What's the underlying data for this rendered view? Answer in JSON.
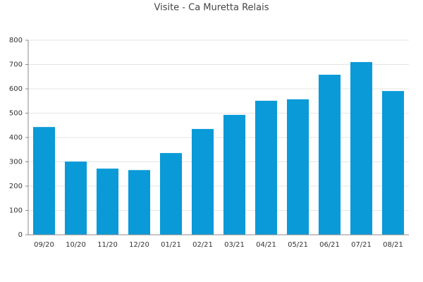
{
  "chart_data": {
    "type": "bar",
    "title": "Visite - Ca Muretta Relais",
    "categories": [
      "09/20",
      "10/20",
      "11/20",
      "12/20",
      "01/21",
      "02/21",
      "03/21",
      "04/21",
      "05/21",
      "06/21",
      "07/21",
      "08/21"
    ],
    "values": [
      443,
      301,
      272,
      266,
      336,
      435,
      493,
      551,
      557,
      658,
      710,
      591
    ],
    "color": "#0a9ad7",
    "ylim": [
      0,
      800
    ],
    "yticks": [
      0,
      100,
      200,
      300,
      400,
      500,
      600,
      700,
      800
    ],
    "grid": true
  }
}
